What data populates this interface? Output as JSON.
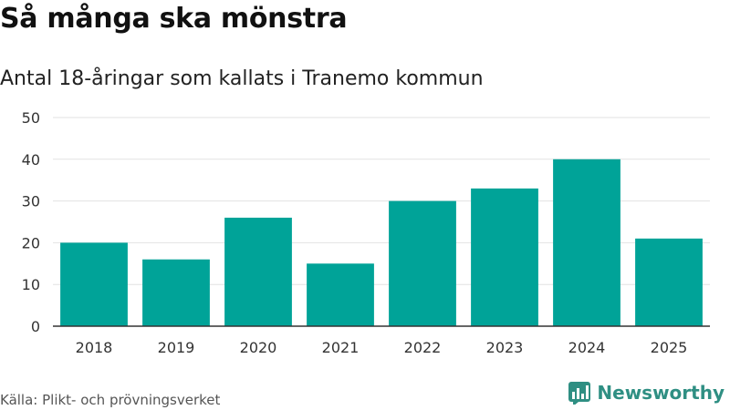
{
  "header": {
    "title": "Så många ska mönstra",
    "subtitle": "Antal 18-åringar som kallats i Tranemo kommun"
  },
  "footer": {
    "source": "Källa: Plikt- och prövningsverket",
    "brand": "Newsworthy"
  },
  "colors": {
    "bar": "#00A398",
    "brand": "#2f8f83",
    "grid": "#e2e2e2",
    "axis": "#333333"
  },
  "chart_data": {
    "type": "bar",
    "title": "",
    "xlabel": "",
    "ylabel": "",
    "categories": [
      "2018",
      "2019",
      "2020",
      "2021",
      "2022",
      "2023",
      "2024",
      "2025"
    ],
    "values": [
      20,
      16,
      26,
      15,
      30,
      33,
      40,
      21
    ],
    "ylim": [
      0,
      50
    ],
    "yticks": [
      0,
      10,
      20,
      30,
      40,
      50
    ],
    "grid": true,
    "legend": "none"
  }
}
